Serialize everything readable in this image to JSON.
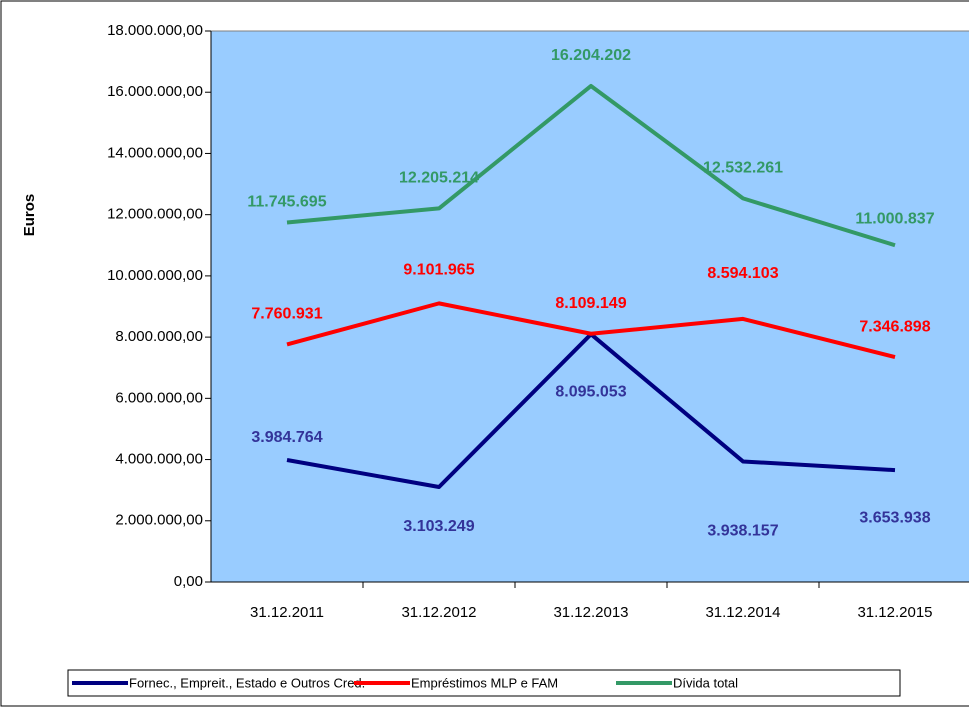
{
  "chart_data": {
    "type": "line",
    "y_label": "Euros",
    "categories": [
      "31.12.2011",
      "31.12.2012",
      "31.12.2013",
      "31.12.2014",
      "31.12.2015"
    ],
    "ylim": [
      0,
      18000000
    ],
    "yticks": [
      {
        "value": 0,
        "label": "0,00"
      },
      {
        "value": 2000000,
        "label": "2.000.000,00"
      },
      {
        "value": 4000000,
        "label": "4.000.000,00"
      },
      {
        "value": 6000000,
        "label": "6.000.000,00"
      },
      {
        "value": 8000000,
        "label": "8.000.000,00"
      },
      {
        "value": 10000000,
        "label": "10.000.000,00"
      },
      {
        "value": 12000000,
        "label": "12.000.000,00"
      },
      {
        "value": 14000000,
        "label": "14.000.000,00"
      },
      {
        "value": 16000000,
        "label": "16.000.000,00"
      },
      {
        "value": 18000000,
        "label": "18.000.000,00"
      }
    ],
    "legend": "bottom",
    "series": [
      {
        "name": "Fornec., Empreit., Estado e Outros Cred.",
        "color": "#000080",
        "values": [
          3984764,
          3103249,
          8095053,
          3938157,
          3653938
        ],
        "value_labels": [
          "3.984.764",
          "3.103.249",
          "8.095.053",
          "3.938.157",
          "3.653.938"
        ]
      },
      {
        "name": "Empréstimos MLP e FAM",
        "color": "#ff0000",
        "values": [
          7760931,
          9101965,
          8109149,
          8594103,
          7346898
        ],
        "value_labels": [
          "7.760.931",
          "9.101.965",
          "8.109.149",
          "8.594.103",
          "7.346.898"
        ]
      },
      {
        "name": "Dívida total",
        "color": "#339966",
        "values": [
          11745695,
          12205214,
          16204202,
          12532261,
          11000837
        ],
        "value_labels": [
          "11.745.695",
          "12.205.214",
          "16.204.202",
          "12.532.261",
          "11.000.837"
        ]
      }
    ]
  }
}
